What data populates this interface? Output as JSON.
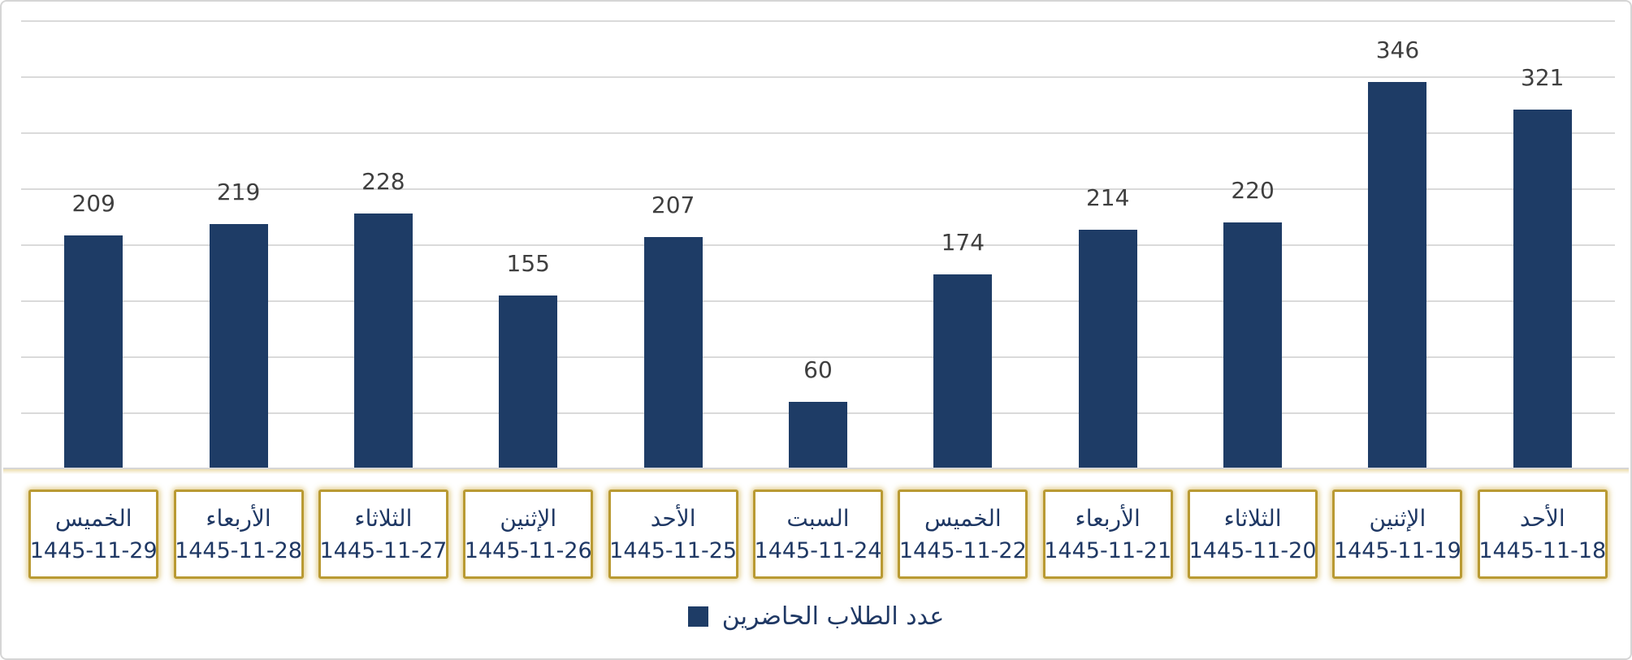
{
  "chart_data": {
    "type": "bar",
    "title": "",
    "legend": {
      "label": "عدد الطلاب الحاضرين",
      "position": "bottom-center",
      "marker": "square"
    },
    "ylim": [
      0,
      400
    ],
    "gridline_step": 50,
    "gridline_values": [
      50,
      100,
      150,
      200,
      250,
      300,
      350,
      400
    ],
    "y_axis_labels_visible": false,
    "grid": true,
    "categories": [
      {
        "day": "الخميس",
        "date": "1445-11-29"
      },
      {
        "day": "الأربعاء",
        "date": "1445-11-28"
      },
      {
        "day": "الثلاثاء",
        "date": "1445-11-27"
      },
      {
        "day": "الإثنين",
        "date": "1445-11-26"
      },
      {
        "day": "الأحد",
        "date": "1445-11-25"
      },
      {
        "day": "السبت",
        "date": "1445-11-24"
      },
      {
        "day": "الخميس",
        "date": "1445-11-22"
      },
      {
        "day": "الأربعاء",
        "date": "1445-11-21"
      },
      {
        "day": "الثلاثاء",
        "date": "1445-11-20"
      },
      {
        "day": "الإثنين",
        "date": "1445-11-19"
      },
      {
        "day": "الأحد",
        "date": "1445-11-18"
      }
    ],
    "series": [
      {
        "name": "عدد الطلاب الحاضرين",
        "values": [
          209,
          219,
          228,
          155,
          207,
          60,
          174,
          214,
          220,
          346,
          321
        ]
      }
    ],
    "colors": {
      "bar": "#1E3C66",
      "value_label": "#3F3F3F",
      "gridline": "#DADADA",
      "axis_line": "#D6D6D6",
      "category_box_border": "#B99A33",
      "category_text": "#1F3864",
      "legend_text": "#1F3864",
      "frame_border": "#D5D5D5",
      "background": "#FFFFFF"
    }
  }
}
